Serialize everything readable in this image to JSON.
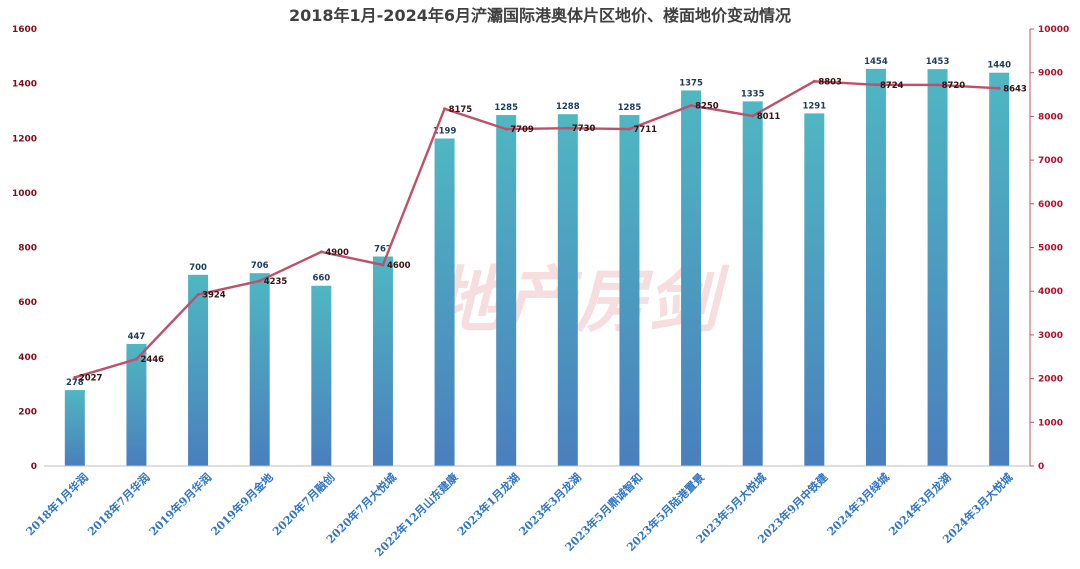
{
  "chart_data": {
    "type": "bar",
    "title": "2018年1月-2024年6月浐灞国际港奥体片区地价、楼面地价变动情况",
    "categories": [
      "2018年1月华润",
      "2018年7月华润",
      "2019年9月华润",
      "2019年9月金地",
      "2020年7月融创",
      "2020年7月大悦城",
      "2022年12月山东建康",
      "2023年1月龙湖",
      "2023年3月龙湖",
      "2023年5月鼎诚智和",
      "2023年5月陆港置景",
      "2023年5月大悦城",
      "2023年9月中铁建",
      "2024年3月绿城",
      "2024年3月龙湖",
      "2024年3月大悦城"
    ],
    "series": [
      {
        "type": "bar",
        "axis": "left",
        "values": [
          278,
          447,
          700,
          706,
          660,
          767,
          1199,
          1285,
          1288,
          1285,
          1375,
          1335,
          1291,
          1454,
          1453,
          1440
        ],
        "color": "#4aa6bd"
      },
      {
        "type": "line",
        "axis": "right",
        "values": [
          2027,
          2446,
          3924,
          4235,
          4900,
          4600,
          8175,
          7709,
          7730,
          7711,
          8250,
          8011,
          8803,
          8724,
          8720,
          8643
        ],
        "color": "#c0506a"
      }
    ],
    "ylim_left": [
      0,
      1600
    ],
    "ylim_right": [
      0,
      10000
    ],
    "yticks_left": [
      "0",
      "200",
      "400",
      "600",
      "800",
      "1000",
      "1200",
      "1400",
      "1600"
    ],
    "yticks_right": [
      "0",
      "1000",
      "2000",
      "3000",
      "4000",
      "5000",
      "6000",
      "7000",
      "8000",
      "9000",
      "10000"
    ],
    "grid": false
  },
  "watermark": "地产房剑"
}
